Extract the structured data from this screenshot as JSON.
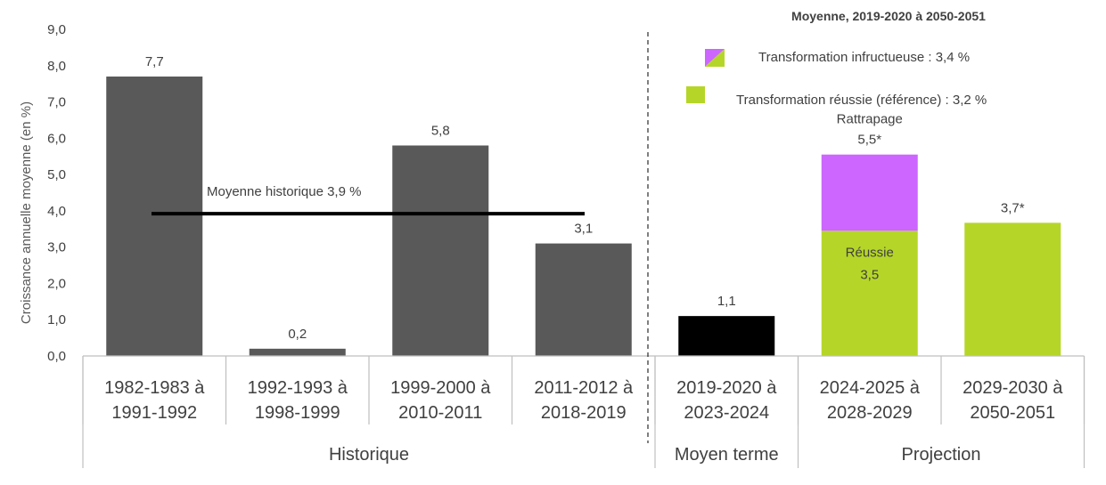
{
  "chart_data": {
    "type": "bar",
    "ylabel": "Croissance annuelle moyenne (en %)",
    "ylim": [
      0,
      9
    ],
    "yticks": [
      "0,0",
      "1,0",
      "2,0",
      "3,0",
      "4,0",
      "5,0",
      "6,0",
      "7,0",
      "8,0",
      "9,0"
    ],
    "ytick_values": [
      0,
      1,
      2,
      3,
      4,
      5,
      6,
      7,
      8,
      9
    ],
    "grid": false,
    "categories": [
      {
        "line1": "1982-1983 à",
        "line2": "1991-1992"
      },
      {
        "line1": "1992-1993 à",
        "line2": "1998-1999"
      },
      {
        "line1": "1999-2000 à",
        "line2": "2010-2011"
      },
      {
        "line1": "2011-2012 à",
        "line2": "2018-2019"
      },
      {
        "line1": "2019-2020 à",
        "line2": "2023-2024"
      },
      {
        "line1": "2024-2025 à",
        "line2": "2028-2029"
      },
      {
        "line1": "2029-2030 à",
        "line2": "2050-2051"
      }
    ],
    "groups": [
      {
        "label": "Historique",
        "count": 4
      },
      {
        "label": "Moyen terme",
        "count": 1
      },
      {
        "label": "Projection",
        "count": 2
      }
    ],
    "bars": [
      {
        "value": 7.7,
        "label": "7,7",
        "color": "#595959"
      },
      {
        "value": 0.2,
        "label": "0,2",
        "color": "#595959"
      },
      {
        "value": 5.8,
        "label": "5,8",
        "color": "#595959"
      },
      {
        "value": 3.1,
        "label": "3,1",
        "color": "#595959"
      },
      {
        "value": 1.1,
        "label": "1,1",
        "color": "#000000"
      },
      {
        "stacked": true,
        "base": 3.45,
        "top": 5.55,
        "label": "5,5*",
        "top_label": "Rattrapage",
        "base_color": "#b5d628",
        "top_color": "#cc66ff",
        "base_text_1": "Réussie",
        "base_text_2": "3,5"
      },
      {
        "value": 3.67,
        "label": "3,7*",
        "color": "#b5d628"
      }
    ],
    "reference_line": {
      "value": 3.92,
      "label": "Moyenne historique 3,9 %",
      "color": "#000000"
    },
    "legend": {
      "title": "Moyenne, 2019-2020 à 2050-2051",
      "placement": "top-right",
      "items": [
        {
          "label": "Transformation infructueuse : 3,4 %",
          "colors": [
            "#cc66ff",
            "#b5d628"
          ]
        },
        {
          "label": "Transformation réussie (référence) : 3,2 %",
          "colors": [
            "#b5d628"
          ]
        }
      ]
    }
  }
}
